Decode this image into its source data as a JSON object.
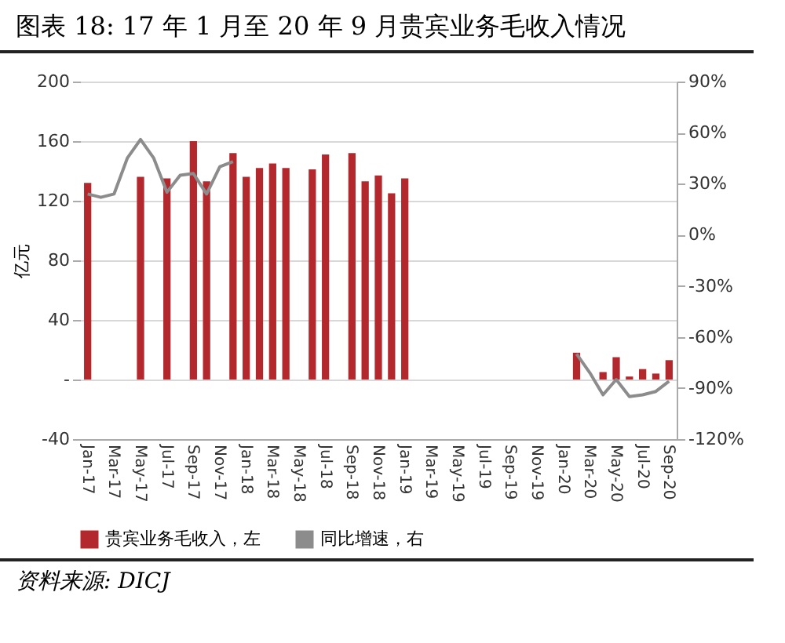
{
  "chart_data": {
    "type": "bar",
    "title": "图表 18:    17 年 1 月至 20 年 9 月贵宾业务毛收入情况",
    "ylabel": "亿元",
    "categories": [
      "Jan-17",
      null,
      "Mar-17",
      null,
      "May-17",
      null,
      "Jul-17",
      null,
      "Sep-17",
      null,
      "Nov-17",
      null,
      "Jan-18",
      null,
      "Mar-18",
      null,
      "May-18",
      null,
      "Jul-18",
      null,
      "Sep-18",
      null,
      "Nov-18",
      null,
      "Jan-19",
      null,
      "Mar-19",
      null,
      "May-19",
      null,
      "Jul-19",
      null,
      "Sep-19",
      null,
      "Nov-19",
      null,
      "Jan-20",
      null,
      "Mar-20",
      null,
      "May-20",
      null,
      "Jul-20",
      null,
      "Sep-20"
    ],
    "series": [
      {
        "name": "贵宾业务毛收入，左",
        "color": "#b3282d",
        "values": [
          132,
          null,
          null,
          null,
          136,
          null,
          135,
          null,
          160,
          133,
          null,
          152,
          136,
          142,
          145,
          142,
          null,
          141,
          151,
          null,
          152,
          133,
          137,
          125,
          135,
          null,
          null,
          null,
          null,
          null,
          null,
          null,
          null,
          null,
          null,
          null,
          null,
          18,
          null,
          5,
          15,
          2,
          7,
          4,
          13
        ]
      },
      {
        "name": "同比增速，右",
        "type": "line",
        "axis": "y2",
        "color": "#8c8c8c",
        "values": [
          24,
          22,
          24,
          45,
          56,
          45,
          25,
          35,
          36,
          24,
          40,
          43,
          null,
          null,
          null,
          null,
          null,
          null,
          null,
          null,
          null,
          null,
          null,
          null,
          null,
          null,
          null,
          null,
          null,
          null,
          null,
          null,
          null,
          null,
          null,
          null,
          null,
          -70,
          -81,
          -94,
          -85,
          -95,
          -94,
          -92,
          -86
        ]
      }
    ],
    "ylim": [
      -40,
      200
    ],
    "yticks": [
      -40,
      {
        "value": 0,
        "label": "-"
      },
      40,
      80,
      120,
      160,
      200
    ],
    "y2lim": [
      -120,
      90
    ],
    "y2ticks": [
      {
        "value": -120,
        "label": "-120%"
      },
      {
        "value": -90,
        "label": "-90%"
      },
      {
        "value": -60,
        "label": "-60%"
      },
      {
        "value": -30,
        "label": "-30%"
      },
      {
        "value": 0,
        "label": "0%"
      },
      {
        "value": 30,
        "label": "30%"
      },
      {
        "value": 60,
        "label": "60%"
      },
      {
        "value": 90,
        "label": "90%"
      }
    ],
    "grid": "y",
    "legend": "bottom",
    "line_style": "solid",
    "annotations": [
      "资料来源: DICJ"
    ]
  }
}
